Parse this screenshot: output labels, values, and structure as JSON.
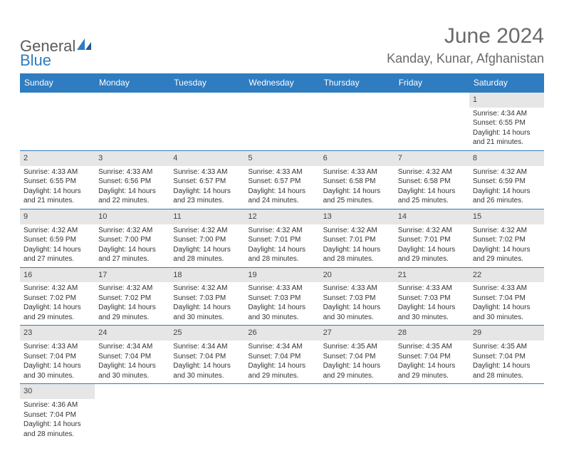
{
  "logo": {
    "text_general": "General",
    "text_blue": "Blue"
  },
  "header": {
    "month_year": "June 2024",
    "location": "Kanday, Kunar, Afghanistan"
  },
  "colors": {
    "header_bar": "#2f7cc0",
    "header_text": "#ffffff",
    "daynum_bg": "#e6e6e6",
    "cell_border": "#2f7cc0",
    "text": "#333333",
    "title_text": "#6a6a6a",
    "logo_gray": "#5a5a5a",
    "logo_blue": "#2f7cc0",
    "background": "#ffffff"
  },
  "typography": {
    "title_month_fontsize": 30,
    "title_location_fontsize": 18,
    "weekday_fontsize": 12,
    "daynum_fontsize": 11,
    "body_fontsize": 10
  },
  "weekdays": [
    "Sunday",
    "Monday",
    "Tuesday",
    "Wednesday",
    "Thursday",
    "Friday",
    "Saturday"
  ],
  "labels": {
    "sunrise": "Sunrise:",
    "sunset": "Sunset:",
    "daylight": "Daylight:"
  },
  "days": {
    "1": {
      "sunrise": "4:34 AM",
      "sunset": "6:55 PM",
      "daylight": "14 hours and 21 minutes."
    },
    "2": {
      "sunrise": "4:33 AM",
      "sunset": "6:55 PM",
      "daylight": "14 hours and 21 minutes."
    },
    "3": {
      "sunrise": "4:33 AM",
      "sunset": "6:56 PM",
      "daylight": "14 hours and 22 minutes."
    },
    "4": {
      "sunrise": "4:33 AM",
      "sunset": "6:57 PM",
      "daylight": "14 hours and 23 minutes."
    },
    "5": {
      "sunrise": "4:33 AM",
      "sunset": "6:57 PM",
      "daylight": "14 hours and 24 minutes."
    },
    "6": {
      "sunrise": "4:33 AM",
      "sunset": "6:58 PM",
      "daylight": "14 hours and 25 minutes."
    },
    "7": {
      "sunrise": "4:32 AM",
      "sunset": "6:58 PM",
      "daylight": "14 hours and 25 minutes."
    },
    "8": {
      "sunrise": "4:32 AM",
      "sunset": "6:59 PM",
      "daylight": "14 hours and 26 minutes."
    },
    "9": {
      "sunrise": "4:32 AM",
      "sunset": "6:59 PM",
      "daylight": "14 hours and 27 minutes."
    },
    "10": {
      "sunrise": "4:32 AM",
      "sunset": "7:00 PM",
      "daylight": "14 hours and 27 minutes."
    },
    "11": {
      "sunrise": "4:32 AM",
      "sunset": "7:00 PM",
      "daylight": "14 hours and 28 minutes."
    },
    "12": {
      "sunrise": "4:32 AM",
      "sunset": "7:01 PM",
      "daylight": "14 hours and 28 minutes."
    },
    "13": {
      "sunrise": "4:32 AM",
      "sunset": "7:01 PM",
      "daylight": "14 hours and 28 minutes."
    },
    "14": {
      "sunrise": "4:32 AM",
      "sunset": "7:01 PM",
      "daylight": "14 hours and 29 minutes."
    },
    "15": {
      "sunrise": "4:32 AM",
      "sunset": "7:02 PM",
      "daylight": "14 hours and 29 minutes."
    },
    "16": {
      "sunrise": "4:32 AM",
      "sunset": "7:02 PM",
      "daylight": "14 hours and 29 minutes."
    },
    "17": {
      "sunrise": "4:32 AM",
      "sunset": "7:02 PM",
      "daylight": "14 hours and 29 minutes."
    },
    "18": {
      "sunrise": "4:32 AM",
      "sunset": "7:03 PM",
      "daylight": "14 hours and 30 minutes."
    },
    "19": {
      "sunrise": "4:33 AM",
      "sunset": "7:03 PM",
      "daylight": "14 hours and 30 minutes."
    },
    "20": {
      "sunrise": "4:33 AM",
      "sunset": "7:03 PM",
      "daylight": "14 hours and 30 minutes."
    },
    "21": {
      "sunrise": "4:33 AM",
      "sunset": "7:03 PM",
      "daylight": "14 hours and 30 minutes."
    },
    "22": {
      "sunrise": "4:33 AM",
      "sunset": "7:04 PM",
      "daylight": "14 hours and 30 minutes."
    },
    "23": {
      "sunrise": "4:33 AM",
      "sunset": "7:04 PM",
      "daylight": "14 hours and 30 minutes."
    },
    "24": {
      "sunrise": "4:34 AM",
      "sunset": "7:04 PM",
      "daylight": "14 hours and 30 minutes."
    },
    "25": {
      "sunrise": "4:34 AM",
      "sunset": "7:04 PM",
      "daylight": "14 hours and 30 minutes."
    },
    "26": {
      "sunrise": "4:34 AM",
      "sunset": "7:04 PM",
      "daylight": "14 hours and 29 minutes."
    },
    "27": {
      "sunrise": "4:35 AM",
      "sunset": "7:04 PM",
      "daylight": "14 hours and 29 minutes."
    },
    "28": {
      "sunrise": "4:35 AM",
      "sunset": "7:04 PM",
      "daylight": "14 hours and 29 minutes."
    },
    "29": {
      "sunrise": "4:35 AM",
      "sunset": "7:04 PM",
      "daylight": "14 hours and 28 minutes."
    },
    "30": {
      "sunrise": "4:36 AM",
      "sunset": "7:04 PM",
      "daylight": "14 hours and 28 minutes."
    }
  },
  "grid": [
    [
      null,
      null,
      null,
      null,
      null,
      null,
      "1"
    ],
    [
      "2",
      "3",
      "4",
      "5",
      "6",
      "7",
      "8"
    ],
    [
      "9",
      "10",
      "11",
      "12",
      "13",
      "14",
      "15"
    ],
    [
      "16",
      "17",
      "18",
      "19",
      "20",
      "21",
      "22"
    ],
    [
      "23",
      "24",
      "25",
      "26",
      "27",
      "28",
      "29"
    ],
    [
      "30",
      null,
      null,
      null,
      null,
      null,
      null
    ]
  ]
}
